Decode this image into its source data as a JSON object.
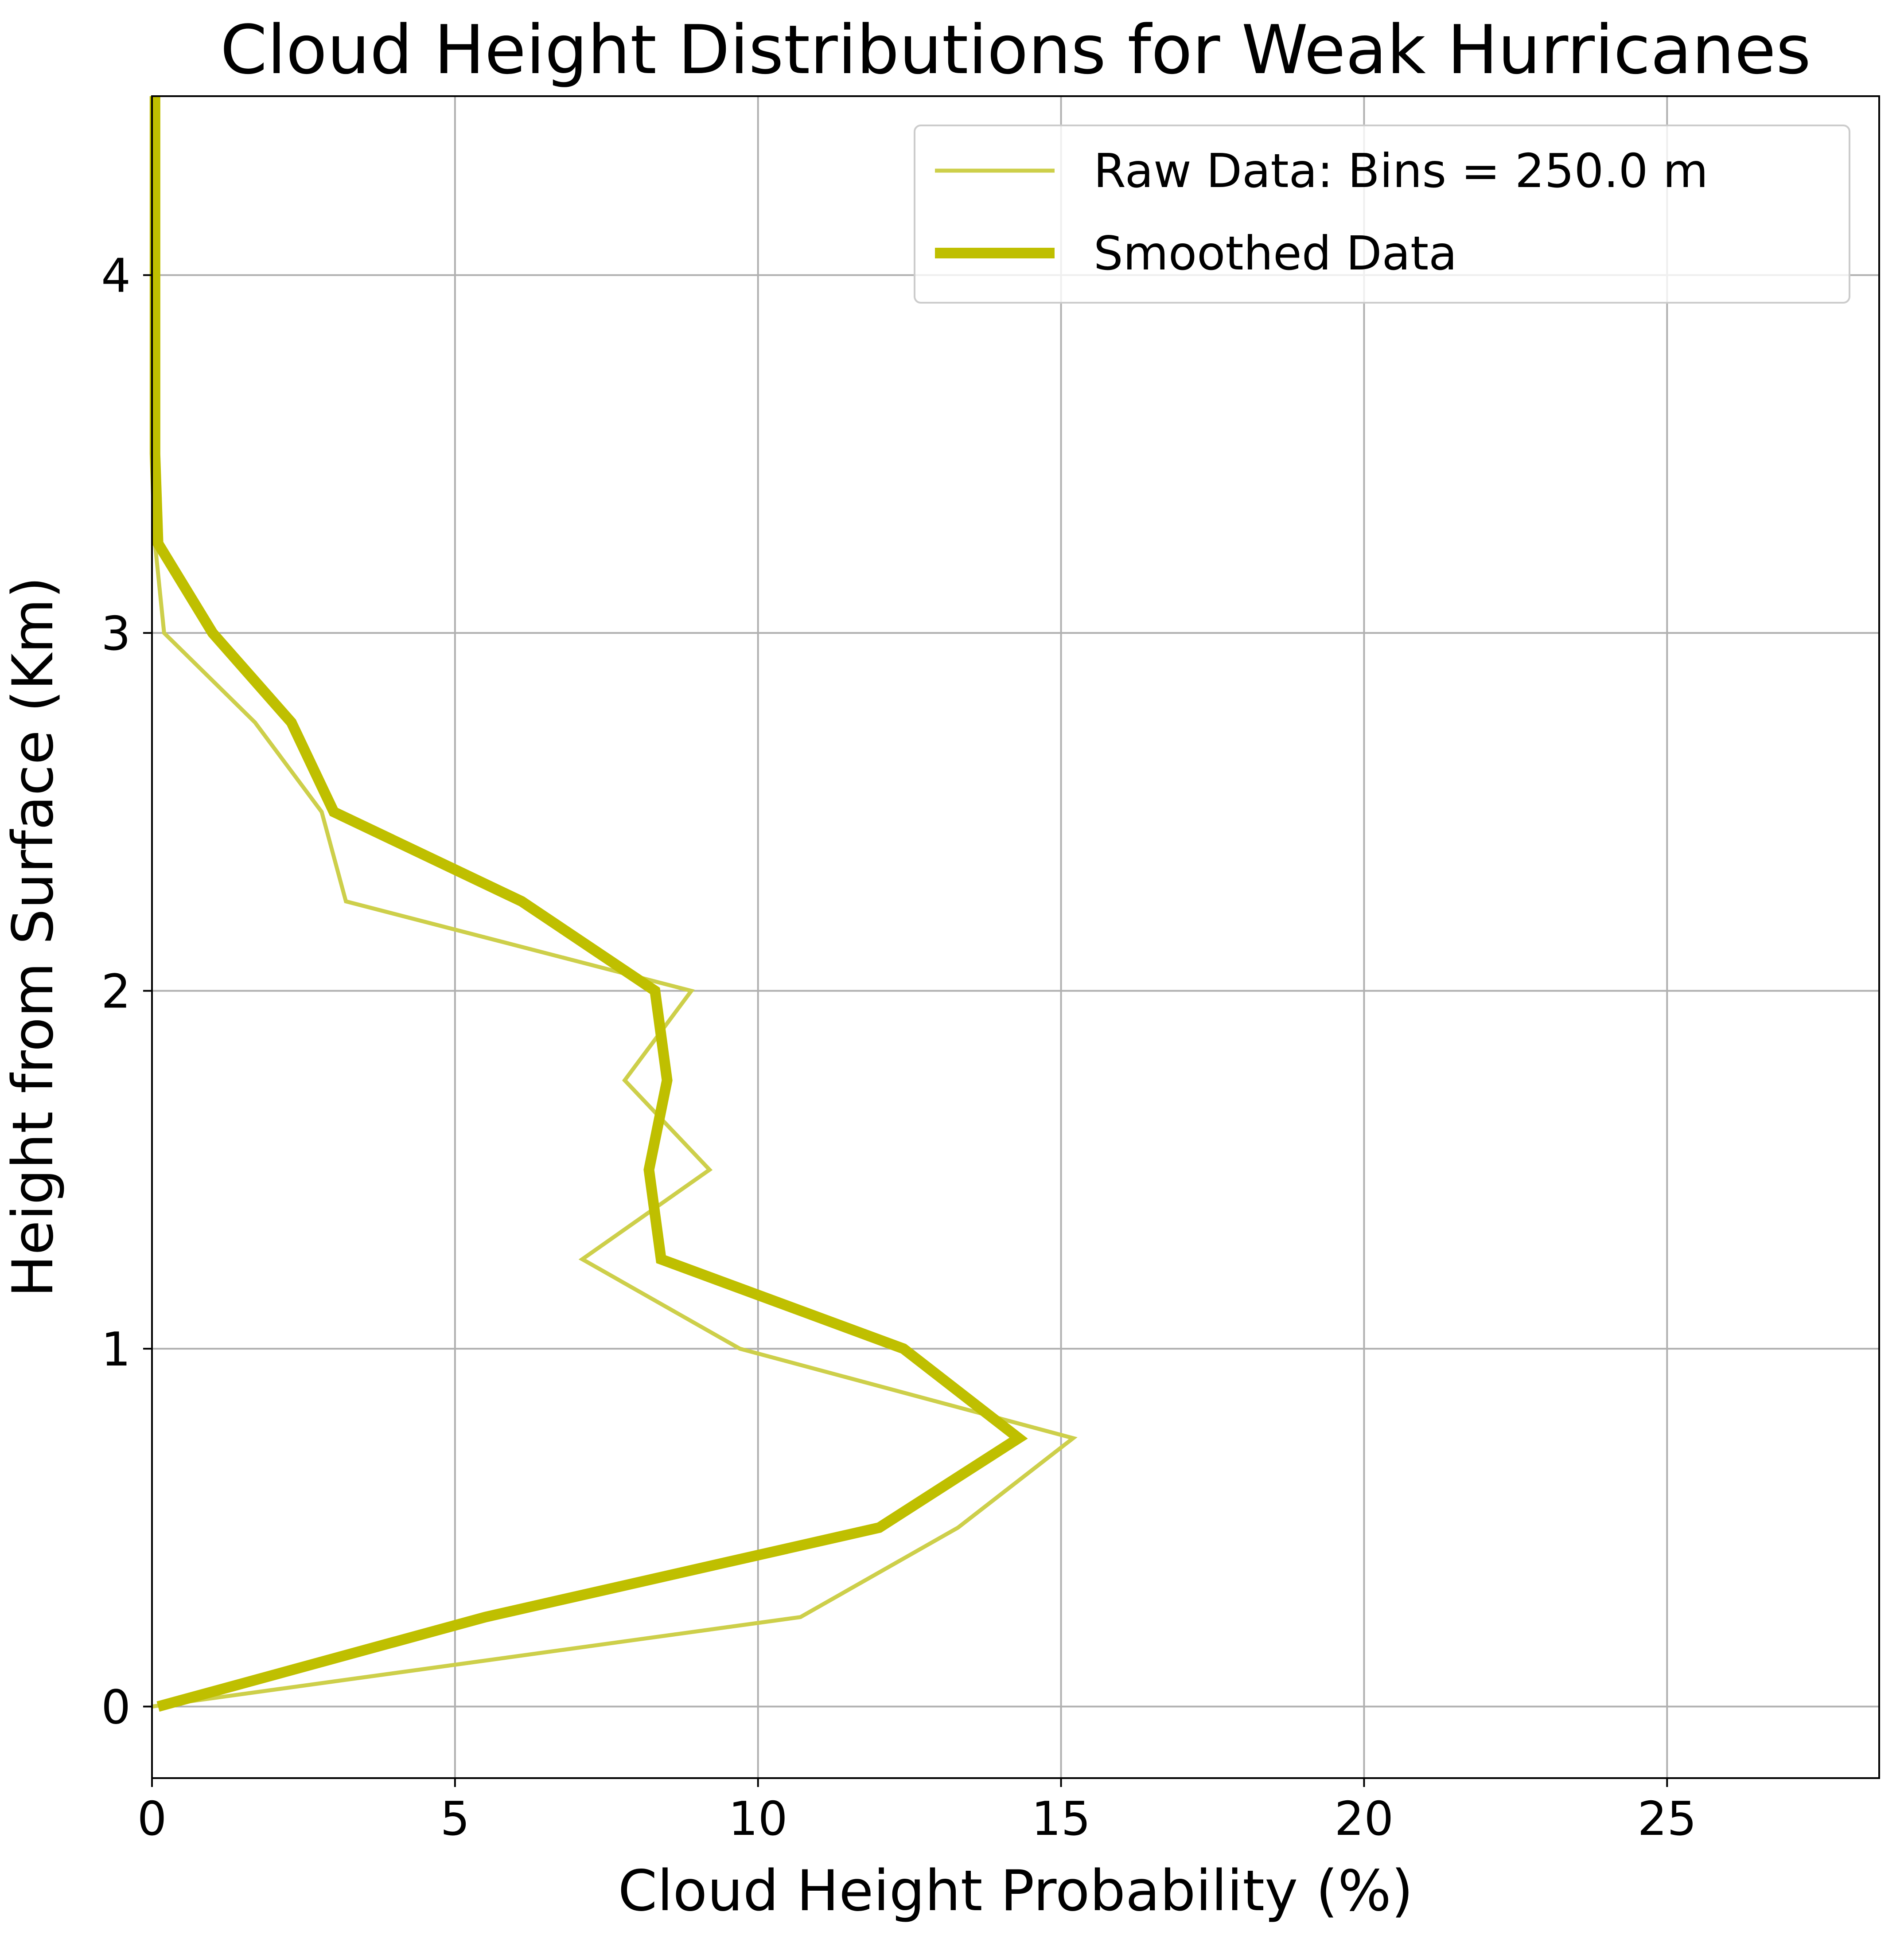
{
  "chart_data": {
    "type": "line",
    "title": "Cloud Height Distributions for Weak Hurricanes",
    "xlabel": "Cloud Height Probability (%)",
    "ylabel": "Height from Surface (Km)",
    "xlim": [
      0,
      28.5
    ],
    "ylim": [
      -0.2,
      4.5
    ],
    "xticks": [
      0,
      5,
      10,
      15,
      20,
      25
    ],
    "yticks": [
      0,
      1,
      2,
      3,
      4
    ],
    "grid": true,
    "legend_position": "top-right",
    "series": [
      {
        "name": "Raw Data: Bins = 250.0 m",
        "color": "#cdcf4a",
        "style": "thin",
        "x": [
          0.0,
          10.7,
          13.3,
          15.2,
          9.7,
          7.1,
          9.2,
          7.8,
          8.9,
          3.2,
          2.8,
          1.7,
          0.2,
          0.05,
          0.05,
          0.05,
          0.05,
          0.05,
          0.05
        ],
        "y": [
          0.0,
          0.25,
          0.5,
          0.75,
          1.0,
          1.25,
          1.5,
          1.75,
          2.0,
          2.25,
          2.5,
          2.75,
          3.0,
          3.25,
          3.5,
          3.75,
          4.0,
          4.25,
          4.5
        ]
      },
      {
        "name": "Smoothed Data",
        "color": "#bfbf00",
        "style": "thick",
        "x": [
          0.1,
          5.5,
          12.0,
          14.3,
          12.4,
          8.4,
          8.2,
          8.5,
          8.3,
          6.1,
          3.0,
          2.3,
          1.0,
          0.1,
          0.05,
          0.05,
          0.05,
          0.05,
          0.05
        ],
        "y": [
          0.0,
          0.25,
          0.5,
          0.75,
          1.0,
          1.25,
          1.5,
          1.75,
          2.0,
          2.25,
          2.5,
          2.75,
          3.0,
          3.25,
          3.5,
          3.75,
          4.0,
          4.25,
          4.5
        ]
      }
    ]
  }
}
